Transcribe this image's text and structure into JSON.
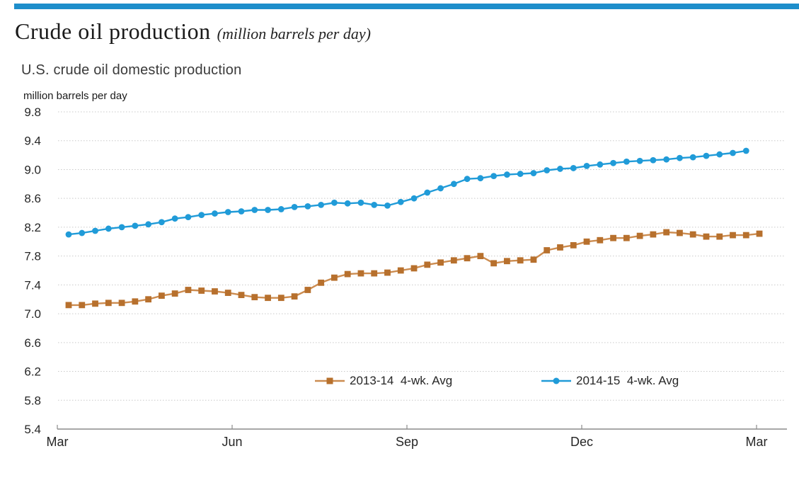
{
  "header": {
    "title": "Crude oil production",
    "subtitle": "(million barrels per day)"
  },
  "chart_data": {
    "type": "line",
    "title": "U.S. crude oil domestic production",
    "ylabel": "million barrels per day",
    "xlabel": "",
    "ylim": [
      5.4,
      9.8
    ],
    "y_tick_step": 0.4,
    "y_ticks": [
      5.4,
      5.8,
      6.2,
      6.6,
      7.0,
      7.4,
      7.8,
      8.2,
      8.6,
      9.0,
      9.4,
      9.8
    ],
    "x_tick_labels": [
      "Mar",
      "Jun",
      "Sep",
      "Dec",
      "Mar"
    ],
    "grid": "horizontal dotted",
    "legend_position": "inside bottom center",
    "x_unit": "weekly observations, Mar through Mar",
    "series": [
      {
        "name": "2013-14  4-wk. Avg",
        "marker": "square",
        "color": "#b7702d",
        "line_color": "#cc8c50",
        "values": [
          7.12,
          7.12,
          7.14,
          7.15,
          7.15,
          7.17,
          7.2,
          7.25,
          7.28,
          7.33,
          7.32,
          7.31,
          7.29,
          7.26,
          7.23,
          7.22,
          7.22,
          7.24,
          7.33,
          7.43,
          7.5,
          7.55,
          7.56,
          7.56,
          7.57,
          7.6,
          7.63,
          7.68,
          7.71,
          7.74,
          7.77,
          7.8,
          7.7,
          7.73,
          7.74,
          7.75,
          7.88,
          7.92,
          7.95,
          8.0,
          8.02,
          8.05,
          8.05,
          8.08,
          8.1,
          8.13,
          8.12,
          8.1,
          8.07,
          8.07,
          8.09,
          8.09,
          8.11
        ]
      },
      {
        "name": "2014-15  4-wk. Avg",
        "marker": "circle",
        "color": "#209bd8",
        "line_color": "#209bd8",
        "values": [
          8.1,
          8.12,
          8.15,
          8.18,
          8.2,
          8.22,
          8.24,
          8.27,
          8.32,
          8.34,
          8.37,
          8.39,
          8.41,
          8.42,
          8.44,
          8.44,
          8.45,
          8.48,
          8.49,
          8.51,
          8.54,
          8.53,
          8.54,
          8.51,
          8.5,
          8.55,
          8.6,
          8.68,
          8.74,
          8.8,
          8.87,
          8.88,
          8.91,
          8.93,
          8.94,
          8.95,
          8.99,
          9.01,
          9.02,
          9.05,
          9.07,
          9.09,
          9.11,
          9.12,
          9.13,
          9.14,
          9.16,
          9.17,
          9.19,
          9.21,
          9.23,
          9.26
        ]
      }
    ]
  },
  "colors": {
    "accent_bar": "#1e8ecb",
    "gridline": "#c9c9c9",
    "axis": "#8c8c8c",
    "tick_text": "#262626"
  }
}
